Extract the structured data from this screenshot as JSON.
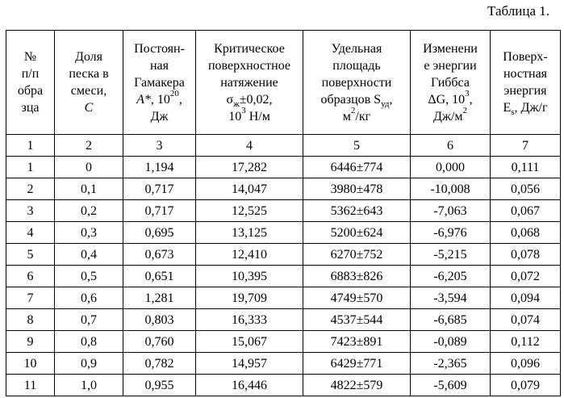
{
  "caption": "Таблица 1.",
  "headers": [
    {
      "lines": [
        "№",
        "п/п",
        "обра",
        "зца"
      ]
    },
    {
      "lines": [
        "Доля",
        "песка в",
        "смеси,"
      ],
      "italic": "C"
    },
    {
      "lines": [
        "Постоян-",
        "ная",
        "Гамакера"
      ],
      "var": "A*",
      "exp_line_pre": ", 10",
      "exp": "20",
      "exp_line_post": ",",
      "unit": "Дж"
    },
    {
      "lines": [
        "Критическое",
        "поверхностное",
        "натяжение"
      ],
      "sigma": "σ",
      "sigma_sub": "ж",
      "sigma_rest": "±0,02,",
      "last_pre": "10",
      "last_exp": "3",
      "last_post": " Н/м"
    },
    {
      "lines": [
        "Удельная",
        "площадь",
        "поверхности"
      ],
      "line4_pre": "образцов S",
      "line4_sub": "уд",
      "line4_post": ",",
      "unit_pre": "м",
      "unit_exp": "2",
      "unit_post": "/кг"
    },
    {
      "lines": [
        "Изменени",
        "е энергии",
        "Гиббса"
      ],
      "line4_pre": "ΔG, 10",
      "line4_exp": "3",
      "line4_post": ",",
      "unit_pre": "Дж/м",
      "unit_exp": "2"
    },
    {
      "lines": [
        "Поверх-",
        "ностная",
        "энергия"
      ],
      "line4_pre": "E",
      "line4_sub": "s",
      "line4_post": ", Дж/г"
    }
  ],
  "column_numbers": [
    "1",
    "2",
    "3",
    "4",
    "5",
    "6",
    "7"
  ],
  "rows": [
    [
      "1",
      "0",
      "1,194",
      "17,282",
      "6446±774",
      "0,000",
      "0,111"
    ],
    [
      "2",
      "0,1",
      "0,717",
      "14,047",
      "3980±478",
      "-10,008",
      "0,056"
    ],
    [
      "3",
      "0,2",
      "0,717",
      "12,525",
      "5362±643",
      "-7,063",
      "0,067"
    ],
    [
      "4",
      "0,3",
      "0,695",
      "13,125",
      "5200±624",
      "-6,976",
      "0,068"
    ],
    [
      "5",
      "0,4",
      "0,673",
      "12,410",
      "6270±752",
      "-5,215",
      "0,078"
    ],
    [
      "6",
      "0,5",
      "0,651",
      "10,395",
      "6883±826",
      "-6,205",
      "0,072"
    ],
    [
      "7",
      "0,6",
      "1,281",
      "19,709",
      "4749±570",
      "-3,594",
      "0,094"
    ],
    [
      "8",
      "0,7",
      "0,803",
      "16,333",
      "4537±544",
      "-6,685",
      "0,074"
    ],
    [
      "9",
      "0,8",
      "0,760",
      "15,067",
      "7423±891",
      "-0,089",
      "0,112"
    ],
    [
      "10",
      "0,9",
      "0,782",
      "14,957",
      "6429±771",
      "-2,365",
      "0,096"
    ],
    [
      "11",
      "1,0",
      "0,955",
      "16,446",
      "4822±579",
      "-5,609",
      "0,079"
    ]
  ]
}
